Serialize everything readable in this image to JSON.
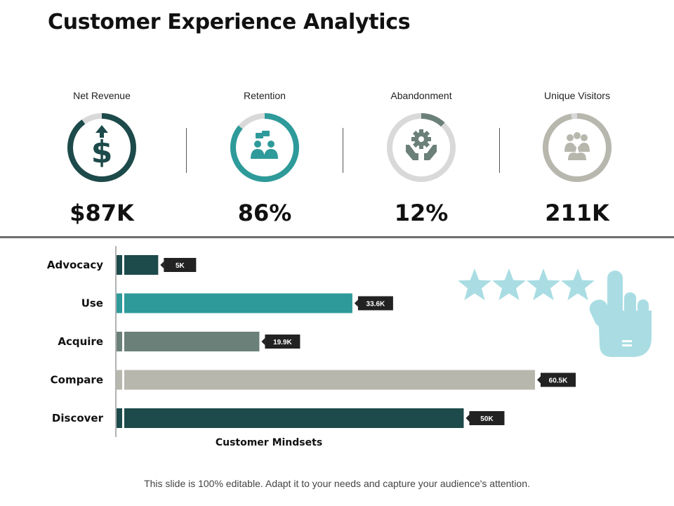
{
  "title": "Customer Experience Analytics",
  "kpis": [
    {
      "label": "Net Revenue",
      "value": "$87K",
      "icon": "dollar-growth-icon",
      "ring_fraction": 0.9,
      "color": "#1d4a4a"
    },
    {
      "label": "Retention",
      "value": "86%",
      "icon": "people-chat-icon",
      "ring_fraction": 0.86,
      "color": "#2e9a9a"
    },
    {
      "label": "Abandonment",
      "value": "12%",
      "icon": "gear-hands-icon",
      "ring_fraction": 0.12,
      "color": "#6b8078"
    },
    {
      "label": "Unique Visitors",
      "value": "211K",
      "icon": "group-icon",
      "ring_fraction": 0.97,
      "color": "#b7b7ae"
    }
  ],
  "colors": {
    "track": "#d9d9d9",
    "label_bg": "#222222",
    "rating": "#a9dde3"
  },
  "chart_data": {
    "type": "bar",
    "orientation": "horizontal",
    "categories": [
      "Advocacy",
      "Use",
      "Acquire",
      "Compare",
      "Discover"
    ],
    "values": [
      5,
      33.6,
      19.9,
      60.5,
      50
    ],
    "value_labels": [
      "5K",
      "33.6K",
      "19.9K",
      "60.5K",
      "50K"
    ],
    "colors": [
      "#1d4a4a",
      "#2e9a9a",
      "#6b8078",
      "#b7b7ae",
      "#1d4a4a"
    ],
    "xlabel": "Customer Mindsets",
    "unit": "K",
    "xlim": [
      0,
      60.5
    ]
  },
  "rating": {
    "stars": 4,
    "icon": "pointing-hand-icon"
  },
  "footnote": "This slide is 100% editable. Adapt it to your needs and capture your audience's attention."
}
